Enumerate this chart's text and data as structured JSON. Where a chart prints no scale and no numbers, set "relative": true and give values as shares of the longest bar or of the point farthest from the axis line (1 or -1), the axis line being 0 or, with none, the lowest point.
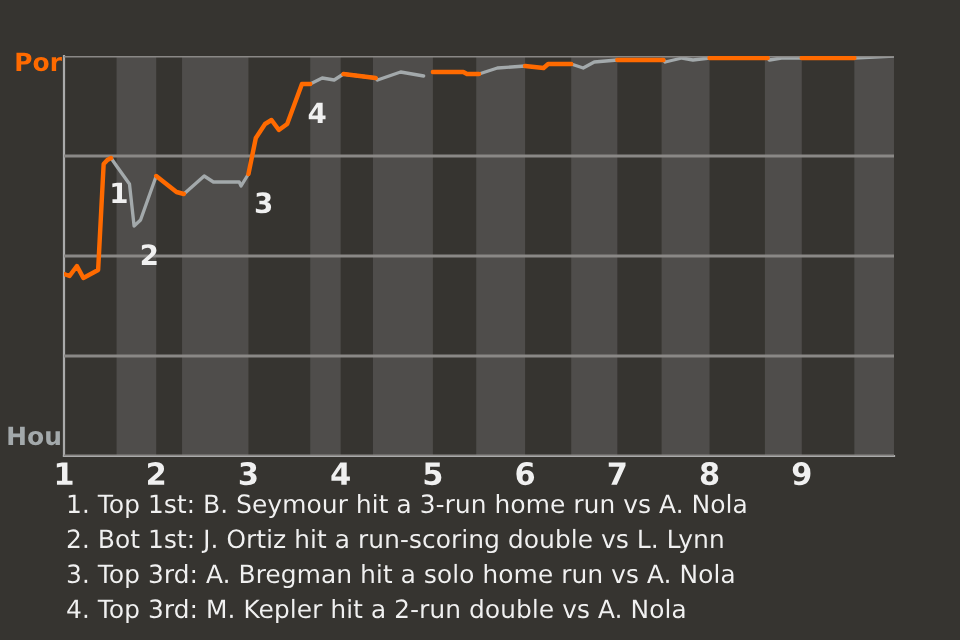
{
  "chart_data": {
    "type": "line",
    "relative": true,
    "x": [
      1.0,
      1.06,
      1.14,
      1.21,
      1.37,
      1.43,
      1.47,
      1.51,
      1.57,
      1.71,
      1.76,
      1.83,
      2.0,
      2.22,
      2.3,
      2.52,
      2.62,
      2.9,
      2.92,
      3.0,
      3.08,
      3.18,
      3.25,
      3.33,
      3.42,
      3.58,
      3.67,
      3.8,
      3.93,
      4.03,
      4.38,
      4.4,
      4.65,
      4.9,
      5.0,
      5.33,
      5.37,
      5.5,
      5.7,
      6.0,
      6.2,
      6.25,
      6.5,
      6.63,
      6.75,
      7.0,
      7.5,
      7.52,
      7.7,
      7.82,
      8.0,
      8.63,
      8.65,
      8.78,
      9.0,
      9.57,
      10.0
    ],
    "series": [
      {
        "color": "#ff6a00",
        "values": [
          0.455,
          0.45,
          0.475,
          0.445,
          0.465,
          0.73,
          0.74,
          0.745,
          null,
          null,
          null,
          null,
          0.7,
          0.66,
          0.655,
          null,
          null,
          null,
          null,
          0.705,
          0.795,
          0.83,
          0.84,
          0.815,
          0.83,
          0.93,
          0.93,
          null,
          null,
          0.955,
          0.945,
          null,
          null,
          null,
          0.96,
          0.96,
          0.955,
          0.955,
          null,
          0.975,
          0.97,
          0.98,
          0.98,
          null,
          null,
          0.99,
          0.99,
          null,
          null,
          null,
          0.995,
          0.995,
          null,
          null,
          0.995,
          0.995,
          null
        ]
      },
      {
        "color": "#a3a9ab",
        "values": [
          null,
          null,
          null,
          null,
          null,
          null,
          null,
          0.745,
          0.725,
          0.68,
          0.575,
          0.59,
          0.7,
          null,
          0.655,
          0.7,
          0.685,
          0.685,
          0.675,
          0.705,
          null,
          null,
          null,
          null,
          null,
          null,
          0.93,
          0.945,
          0.94,
          0.955,
          0.945,
          0.94,
          0.96,
          0.95,
          null,
          null,
          null,
          0.955,
          0.97,
          0.975,
          null,
          null,
          0.98,
          0.97,
          0.985,
          0.99,
          0.99,
          0.985,
          0.995,
          0.99,
          0.995,
          0.995,
          0.99,
          0.995,
          0.995,
          0.995,
          1.0
        ]
      }
    ],
    "xlim": [
      1,
      10
    ],
    "xticks": [
      1,
      2,
      3,
      4,
      5,
      6,
      7,
      8,
      9
    ],
    "grid": "y",
    "bands": [
      {
        "axis": "x",
        "from": 1.57,
        "to": 2.0,
        "color": "#4f4d4b"
      },
      {
        "axis": "x",
        "from": 2.28,
        "to": 3.0,
        "color": "#4f4d4b"
      },
      {
        "axis": "x",
        "from": 3.67,
        "to": 4.0,
        "color": "#4f4d4b"
      },
      {
        "axis": "x",
        "from": 4.35,
        "to": 5.0,
        "color": "#4f4d4b"
      },
      {
        "axis": "x",
        "from": 5.47,
        "to": 6.0,
        "color": "#4f4d4b"
      },
      {
        "axis": "x",
        "from": 6.5,
        "to": 7.0,
        "color": "#4f4d4b"
      },
      {
        "axis": "x",
        "from": 7.48,
        "to": 8.0,
        "color": "#4f4d4b"
      },
      {
        "axis": "x",
        "from": 8.6,
        "to": 9.0,
        "color": "#4f4d4b"
      },
      {
        "axis": "x",
        "from": 9.57,
        "to": 10.0,
        "color": "#4f4d4b"
      }
    ],
    "annotations": [
      "Por",
      "Hou",
      {
        "text": "1",
        "x": 1.43,
        "y": 0.73
      },
      {
        "text": "2",
        "x": 1.76,
        "y": 0.575
      },
      {
        "text": "3",
        "x": 3.0,
        "y": 0.705
      },
      {
        "text": "4",
        "x": 3.58,
        "y": 0.93
      },
      "1. Top 1st: B. Seymour hit a 3-run home run vs A. Nola",
      "2. Bot 1st: J. Ortiz hit a run-scoring double vs L. Lynn",
      "3. Top 3rd: A. Bregman hit a solo home run vs A. Nola",
      "4. Top 3rd: M. Kepler hit a 2-run double vs A. Nola"
    ]
  }
}
